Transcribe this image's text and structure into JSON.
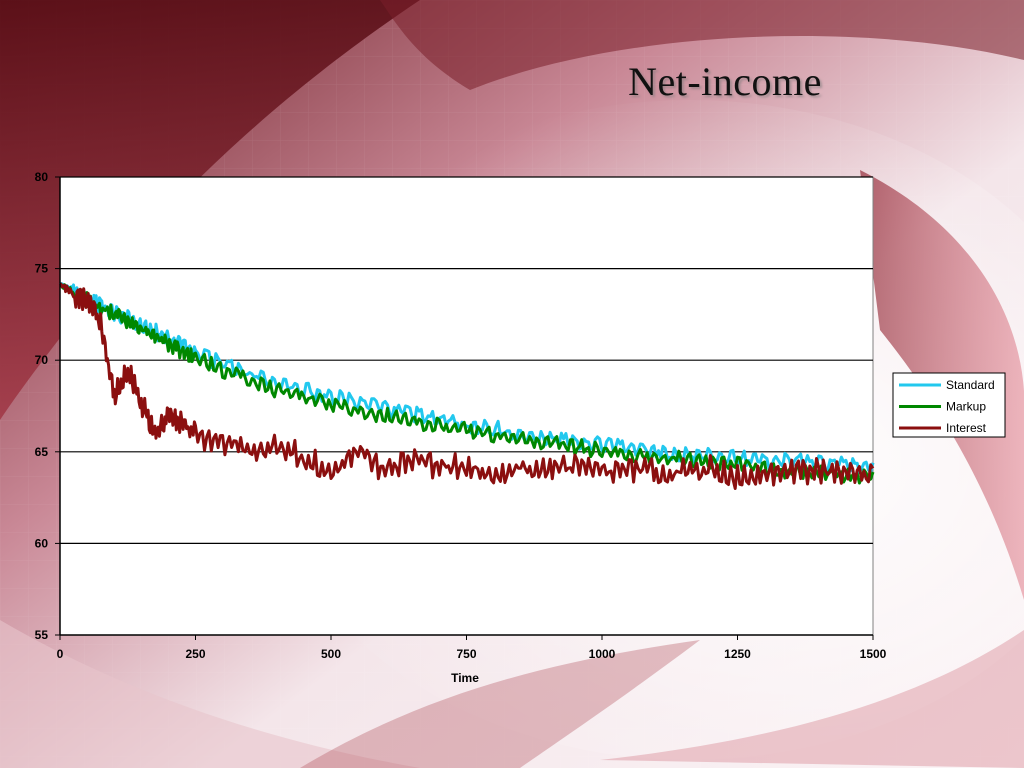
{
  "slide": {
    "title": "Net-income"
  },
  "chart_data": {
    "type": "line",
    "title": "",
    "xlabel": "Time",
    "ylabel": "",
    "xlim": [
      0,
      1500
    ],
    "ylim": [
      55,
      80
    ],
    "x_ticks": [
      "0",
      "250",
      "500",
      "750",
      "1000",
      "1250",
      "1500"
    ],
    "y_ticks": [
      "55",
      "60",
      "65",
      "70",
      "75",
      "80"
    ],
    "grid": "horizontal",
    "legend_position": "right",
    "x": [
      0,
      25,
      50,
      75,
      100,
      125,
      150,
      175,
      200,
      225,
      250,
      300,
      350,
      400,
      450,
      500,
      550,
      600,
      650,
      700,
      750,
      800,
      850,
      900,
      950,
      1000,
      1050,
      1100,
      1150,
      1200,
      1250,
      1300,
      1350,
      1400,
      1450,
      1500
    ],
    "series": [
      {
        "name": "Standard",
        "color": "#22c8ee",
        "values": [
          74.2,
          73.9,
          73.6,
          73.2,
          72.8,
          72.5,
          72.1,
          71.8,
          71.4,
          71.0,
          70.6,
          70.0,
          69.5,
          69.0,
          68.6,
          68.3,
          67.9,
          67.6,
          67.3,
          67.0,
          66.7,
          66.5,
          66.2,
          66.0,
          65.8,
          65.6,
          65.4,
          65.3,
          65.1,
          65.0,
          64.9,
          64.7,
          64.7,
          64.6,
          64.5,
          64.4
        ]
      },
      {
        "name": "Markup",
        "color": "#008800",
        "values": [
          74.2,
          73.8,
          73.5,
          73.1,
          72.7,
          72.3,
          71.9,
          71.5,
          71.1,
          70.7,
          70.3,
          69.7,
          69.1,
          68.6,
          68.2,
          67.8,
          67.5,
          67.2,
          66.9,
          66.6,
          66.4,
          66.1,
          65.9,
          65.7,
          65.5,
          65.3,
          65.1,
          64.9,
          64.8,
          64.6,
          64.5,
          64.3,
          64.2,
          64.1,
          64.0,
          63.9
        ]
      },
      {
        "name": "Interest",
        "color": "#8b0f0f",
        "values": [
          74.2,
          73.7,
          73.6,
          72.2,
          68.3,
          69.8,
          68.0,
          66.5,
          67.2,
          66.8,
          66.3,
          65.7,
          65.4,
          65.9,
          65.0,
          64.4,
          65.3,
          64.2,
          64.9,
          64.5,
          64.6,
          64.2,
          64.6,
          64.3,
          64.5,
          64.2,
          64.4,
          64.3,
          64.3,
          64.5,
          64.0,
          64.2,
          64.2,
          64.3,
          64.1,
          64.1
        ]
      }
    ]
  }
}
